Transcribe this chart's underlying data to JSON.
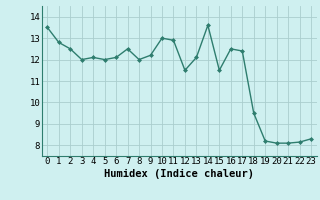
{
  "x": [
    0,
    1,
    2,
    3,
    4,
    5,
    6,
    7,
    8,
    9,
    10,
    11,
    12,
    13,
    14,
    15,
    16,
    17,
    18,
    19,
    20,
    21,
    22,
    23
  ],
  "y": [
    13.5,
    12.8,
    12.5,
    12.0,
    12.1,
    12.0,
    12.1,
    12.5,
    12.0,
    12.2,
    13.0,
    12.9,
    11.5,
    12.1,
    13.6,
    11.5,
    12.5,
    12.4,
    9.5,
    8.2,
    8.1,
    8.1,
    8.15,
    8.3
  ],
  "line_color": "#2e7d6e",
  "marker": "D",
  "marker_size": 2.0,
  "line_width": 1.0,
  "bg_color": "#cff0f0",
  "grid_color": "#aacece",
  "xlabel": "Humidex (Indice chaleur)",
  "xlim": [
    -0.5,
    23.5
  ],
  "ylim": [
    7.5,
    14.5
  ],
  "yticks": [
    8,
    9,
    10,
    11,
    12,
    13,
    14
  ],
  "xticks": [
    0,
    1,
    2,
    3,
    4,
    5,
    6,
    7,
    8,
    9,
    10,
    11,
    12,
    13,
    14,
    15,
    16,
    17,
    18,
    19,
    20,
    21,
    22,
    23
  ],
  "xlabel_fontsize": 7.5,
  "tick_fontsize": 6.5
}
